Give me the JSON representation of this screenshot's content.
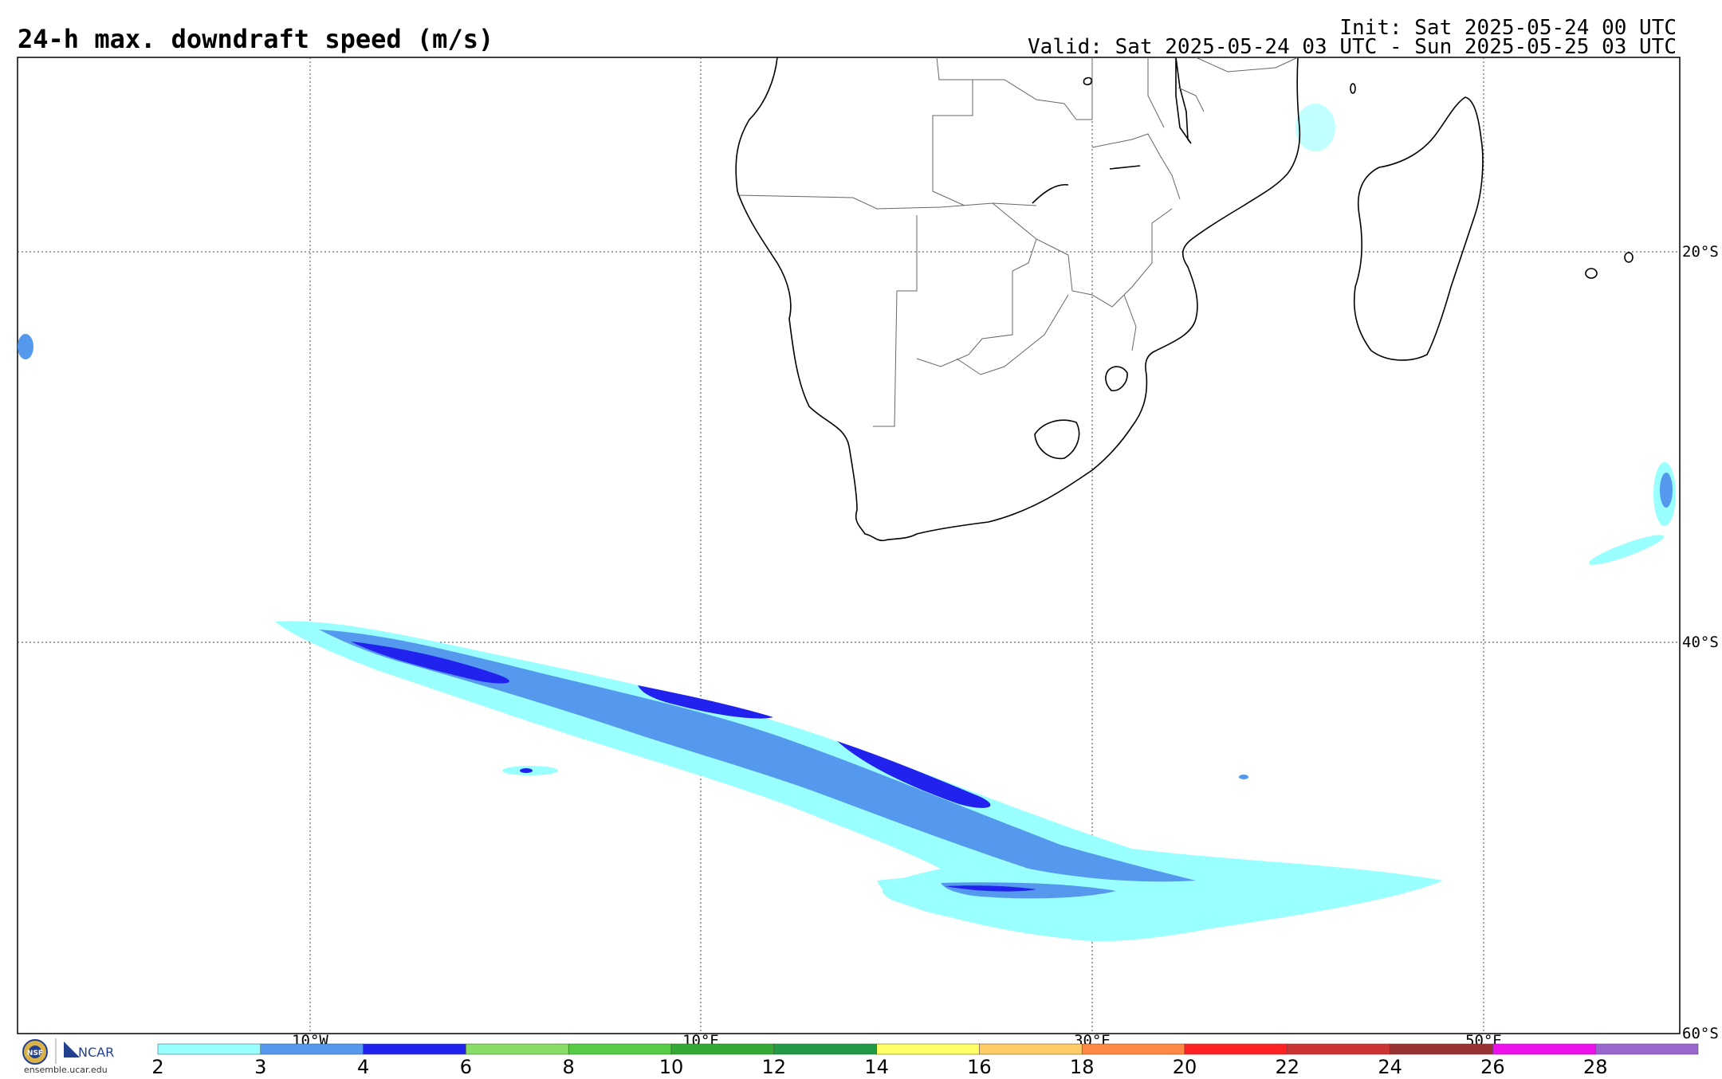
{
  "header": {
    "title": "24-h max. downdraft speed (m/s)",
    "init": "Init: Sat 2025-05-24 00 UTC",
    "valid": "Valid: Sat 2025-05-24 03 UTC - Sun 2025-05-25 03 UTC"
  },
  "map": {
    "lon_labels": [
      "10°W",
      "10°E",
      "30°E",
      "50°E"
    ],
    "lat_labels": [
      "20°S",
      "40°S",
      "60°S"
    ],
    "gridlines": true,
    "region": "Southern Africa and South Atlantic"
  },
  "colorbar": {
    "ticks": [
      "2",
      "3",
      "4",
      "6",
      "8",
      "10",
      "12",
      "14",
      "16",
      "18",
      "20",
      "22",
      "24",
      "26",
      "28"
    ],
    "colors": [
      "#99ffff",
      "#5599ee",
      "#2222ee",
      "#88dd66",
      "#55cc44",
      "#33aa33",
      "#229944",
      "#ffff66",
      "#ffcc66",
      "#ff8844",
      "#ff2222",
      "#cc3333",
      "#993333",
      "#ee11ee",
      "#9966cc"
    ]
  },
  "logos": {
    "left_name": "NSF",
    "right_name": "NCAR",
    "url": "ensemble.ucar.edu"
  }
}
